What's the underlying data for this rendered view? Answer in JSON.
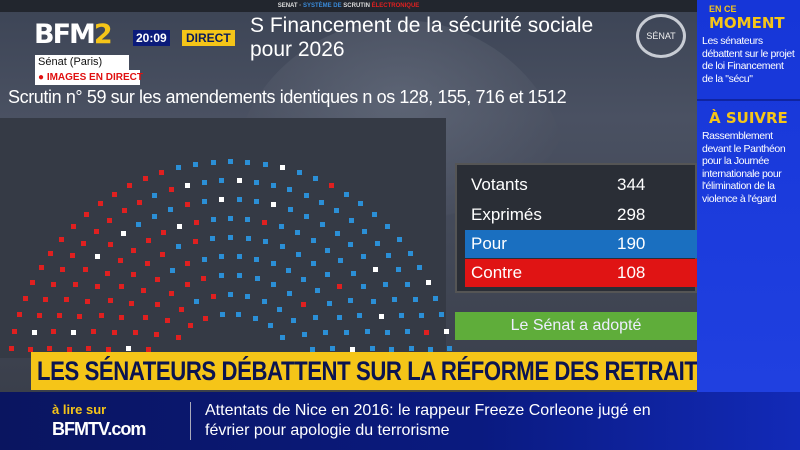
{
  "broadcast": {
    "channel_logo": "BFM2",
    "time": "20:09",
    "live_label": "DIRECT",
    "location": "Sénat (Paris)",
    "live_indicator": "IMAGES EN DIRECT"
  },
  "senate_screen": {
    "system_header": [
      "SENAT · ",
      "SYSTÈME DE ",
      "SCRUTIN ",
      "ÉLECTRONIQUE"
    ],
    "title": "S Financement de la sécurité sociale pour 2026",
    "logo": "SÉNAT",
    "scrutin_line": "Scrutin n° 59 sur les amendements identiques n os  128, 155, 716 et 1512",
    "results": [
      {
        "label": "Votants",
        "value": "344",
        "color": "#2a2e36"
      },
      {
        "label": "Exprimés",
        "value": "298",
        "color": "#2a2e36"
      },
      {
        "label": "Pour",
        "value": "190",
        "color": "#1a6fc0"
      },
      {
        "label": "Contre",
        "value": "108",
        "color": "#e01414"
      }
    ],
    "outcome": "Le Sénat a adopté",
    "seat_colors": {
      "pour": "#2b8fd6",
      "contre": "#e02020",
      "abstention": "#ffffff"
    }
  },
  "headline": "LES SÉNATEURS DÉBATTENT SUR LA RÉFORME DES RETRAITES",
  "sidebar": {
    "now_kicker": "EN CE",
    "now_title": "MOMENT",
    "now_text": "Les sénateurs débattent sur le projet de loi Financement de la \"sécu\"",
    "next_title": "À SUIVRE",
    "next_text": "Rassemblement devant le Panthéon pour la Journée internationale pour l'élimination de la violence à l'égard"
  },
  "ticker": {
    "kicker": "à lire sur",
    "site": "BFMTV.com",
    "text": "Attentats de Nice en 2016: le rappeur Freeze Corleone jugé en février pour apologie du terrorisme"
  }
}
